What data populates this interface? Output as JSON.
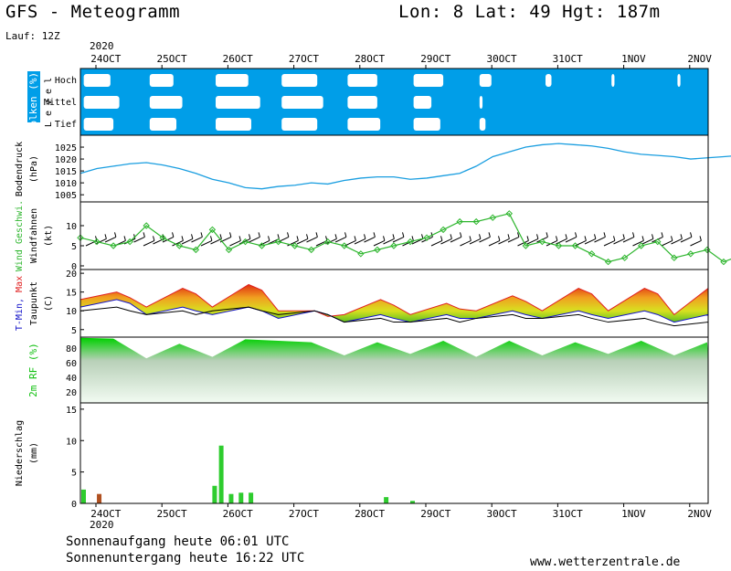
{
  "header": {
    "title": "GFS - Meteogramm",
    "location": "Lon: 8 Lat: 49 Hgt: 187m",
    "run": "Lauf: 12Z",
    "year_top": "2020",
    "year_bottom": "2020"
  },
  "footer": {
    "sunrise": "Sonnenaufgang heute 06:01 UTC",
    "sunset": "Sonnenuntergang heute 16:22 UTC",
    "site": "www.wetterzentrale.de"
  },
  "colors": {
    "cloud_bg": "#009ee8",
    "pressure": "#1a9ee0",
    "wind": "#2cb52c",
    "tmin": "#1010c8",
    "tmax": "#e02020",
    "rh": "#10c010",
    "precip_rain": "#2ecc2e",
    "precip_other": "#b05020"
  },
  "chart_data": [
    {
      "type": "area",
      "title": "Wolken (%)",
      "ylabel": "L e v e l",
      "levels": [
        "Hoch",
        "Mittel",
        "Tief"
      ],
      "x": [
        "24OCT",
        "25OCT",
        "26OCT",
        "27OCT",
        "28OCT",
        "29OCT",
        "30OCT",
        "31OCT",
        "1NOV",
        "2NOV"
      ],
      "series": [
        {
          "name": "Hoch",
          "values": [
            55,
            60,
            45,
            40,
            50,
            50,
            80,
            90,
            95,
            95
          ]
        },
        {
          "name": "Mittel",
          "values": [
            40,
            45,
            25,
            30,
            50,
            70,
            95,
            100,
            100,
            100
          ]
        },
        {
          "name": "Tief",
          "values": [
            50,
            55,
            40,
            40,
            45,
            55,
            90,
            100,
            100,
            100
          ]
        }
      ]
    },
    {
      "type": "line",
      "ylabel": "Bodendruck (hPa)",
      "yticks": [
        1005,
        1010,
        1015,
        1020,
        1025
      ],
      "ylim": [
        1002,
        1030
      ],
      "x_days": [
        0,
        0.25,
        0.5,
        0.75,
        1,
        1.25,
        1.5,
        1.75,
        2,
        2.25,
        2.5,
        2.75,
        3,
        3.25,
        3.5,
        3.75,
        4,
        4.25,
        4.5,
        4.75,
        5,
        5.25,
        5.5,
        5.75,
        6,
        6.25,
        6.5,
        6.75,
        7,
        7.25,
        7.5,
        7.75,
        8,
        8.25,
        8.5,
        8.75,
        9,
        9.25,
        9.5,
        9.75,
        10
      ],
      "values": [
        1014,
        1016,
        1017,
        1018,
        1018.5,
        1017.5,
        1016,
        1014,
        1011.5,
        1010,
        1008,
        1007.5,
        1008.5,
        1009,
        1010,
        1009.5,
        1011,
        1012,
        1012.5,
        1012.5,
        1011.5,
        1012,
        1013,
        1014,
        1017,
        1021,
        1023,
        1025,
        1026,
        1026.5,
        1026,
        1025.5,
        1024.5,
        1023,
        1022,
        1021.5,
        1021,
        1020,
        1020.5,
        1021,
        1021.5
      ]
    },
    {
      "type": "line",
      "ylabel": "Wind Geschwi. (kt)",
      "yticks": [
        0,
        5,
        10
      ],
      "ylim": [
        0,
        15
      ],
      "x_days": [
        0,
        0.25,
        0.5,
        0.75,
        1,
        1.25,
        1.5,
        1.75,
        2,
        2.25,
        2.5,
        2.75,
        3,
        3.25,
        3.5,
        3.75,
        4,
        4.25,
        4.5,
        4.75,
        5,
        5.25,
        5.5,
        5.75,
        6,
        6.25,
        6.5,
        6.75,
        7,
        7.25,
        7.5,
        7.75,
        8,
        8.25,
        8.5,
        8.75,
        9,
        9.25,
        9.5,
        9.75,
        10
      ],
      "values": [
        7,
        6,
        5,
        6,
        10,
        7,
        5,
        4,
        9,
        4,
        6,
        5,
        6,
        5,
        4,
        6,
        5,
        3,
        4,
        5,
        6,
        7,
        9,
        11,
        11,
        12,
        13,
        5,
        6,
        5,
        5,
        3,
        1,
        2,
        5,
        6,
        2,
        3,
        4,
        1,
        2.5
      ]
    },
    {
      "type": "area",
      "ylabel": "T-Min, Max (C)",
      "yticks": [
        5,
        10,
        15,
        20
      ],
      "ylim": [
        3,
        21
      ],
      "x": [
        "24OCT",
        "25OCT",
        "26OCT",
        "27OCT",
        "28OCT",
        "29OCT",
        "30OCT",
        "31OCT",
        "1NOV",
        "2NOV"
      ],
      "series": [
        {
          "name": "T-Max",
          "values": [
            15,
            16,
            17,
            10,
            13,
            12,
            14,
            16,
            16,
            16
          ]
        },
        {
          "name": "T-Min",
          "values": [
            11,
            9,
            9,
            8,
            7,
            7,
            8,
            8,
            8,
            7
          ]
        },
        {
          "name": "Taupunkt",
          "values": [
            10,
            9,
            10,
            9,
            7,
            7,
            8,
            8,
            7,
            6
          ]
        }
      ]
    },
    {
      "type": "area",
      "ylabel": "2m RF (%)",
      "yticks": [
        20,
        40,
        60,
        80
      ],
      "ylim": [
        5,
        95
      ],
      "x_days": [
        0,
        0.5,
        1,
        1.5,
        2,
        2.5,
        3,
        3.5,
        4,
        4.5,
        5,
        5.5,
        6,
        6.5,
        7,
        7.5,
        8,
        8.5,
        9,
        9.5,
        10
      ],
      "values": [
        94,
        93,
        66,
        86,
        68,
        92,
        90,
        88,
        70,
        88,
        72,
        90,
        68,
        90,
        70,
        88,
        72,
        90,
        70,
        88,
        72
      ]
    },
    {
      "type": "bar",
      "ylabel": "Niederschlag (mm)",
      "yticks": [
        0,
        5,
        10,
        15
      ],
      "ylim": [
        0,
        16
      ],
      "x_days": [
        0,
        0.25,
        2.0,
        2.1,
        2.25,
        2.4,
        2.55,
        4.6,
        5.0
      ],
      "values": [
        2.2,
        1.5,
        2.8,
        9.2,
        1.5,
        1.7,
        1.7,
        1.0,
        0.4
      ]
    }
  ],
  "axis_labels": [
    "24OCT",
    "25OCT",
    "26OCT",
    "27OCT",
    "28OCT",
    "29OCT",
    "30OCT",
    "31OCT",
    "1NOV",
    "2NOV"
  ],
  "panel_labels": {
    "clouds": "Wolken (%)",
    "level": "L e v e l",
    "pressure_a": "Bodendruck",
    "pressure_b": "(hPa)",
    "wind_a": "Wind Geschwi.",
    "wind_b": "Windfahnen",
    "wind_c": "(kt)",
    "temp_a": "T-Min, Max",
    "temp_b": "Taupunkt",
    "temp_c": "(C)",
    "rh": "2m RF (%)",
    "precip_a": "Niederschlag",
    "precip_b": "(mm)"
  }
}
